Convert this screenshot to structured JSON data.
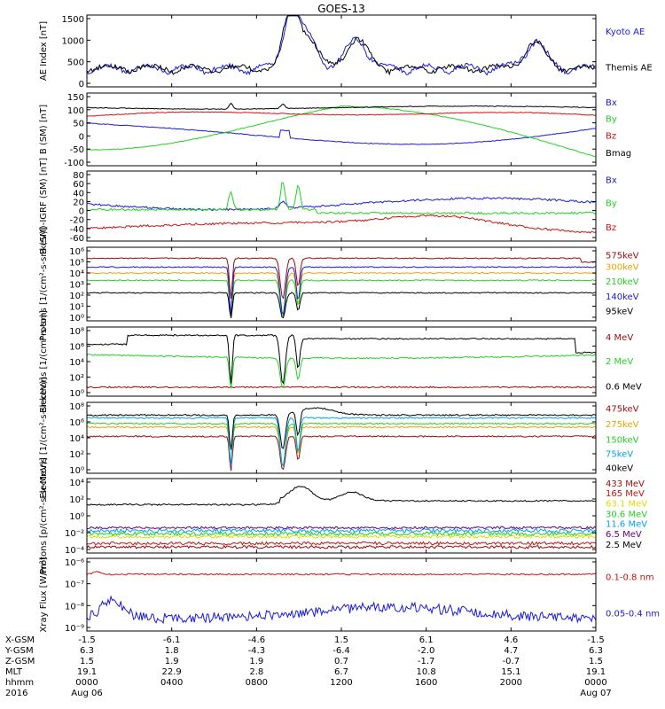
{
  "title": "GOES-13",
  "colors": {
    "black": "#000000",
    "blue": "#1a1adc",
    "green": "#22d022",
    "red": "#d01010",
    "darkred": "#9a0a0a",
    "orange": "#f0a000",
    "cyan": "#00a0f0",
    "yellow": "#dcdc00",
    "purple": "#6a0080"
  },
  "chart_data": [
    {
      "type": "line",
      "ylabel": "AE Index [nT]",
      "yticks": [
        "1500",
        "1000",
        "500",
        "0"
      ],
      "series": [
        {
          "name": "Kyoto AE",
          "color": "blue"
        },
        {
          "name": "Themis AE",
          "color": "black"
        }
      ]
    },
    {
      "type": "line",
      "ylabel": "B (SM) [nT]",
      "yticks": [
        "150",
        "100",
        "50",
        "0",
        "-50",
        "-100"
      ],
      "series": [
        {
          "name": "Bx",
          "color": "blue"
        },
        {
          "name": "By",
          "color": "green"
        },
        {
          "name": "Bz",
          "color": "red"
        },
        {
          "name": "Bmag",
          "color": "black"
        }
      ]
    },
    {
      "type": "line",
      "ylabel": "B (SM)-IGRF (SM) [nT]",
      "yticks": [
        "80",
        "60",
        "40",
        "20",
        "0",
        "-20",
        "-40",
        "-60"
      ],
      "series": [
        {
          "name": "Bx",
          "color": "blue"
        },
        {
          "name": "By",
          "color": "green"
        },
        {
          "name": "Bz",
          "color": "red"
        }
      ]
    },
    {
      "type": "line",
      "ylabel": "Protons [1/(cm²-s-sr-keV)]",
      "log": true,
      "yticks": [
        "10⁶",
        "10⁵",
        "10⁴",
        "10³",
        "10²",
        "10¹",
        "10⁰"
      ],
      "series": [
        {
          "name": "575keV",
          "color": "darkred"
        },
        {
          "name": "300keV",
          "color": "orange"
        },
        {
          "name": "210keV",
          "color": "green"
        },
        {
          "name": "140keV",
          "color": "blue"
        },
        {
          "name": "95keV",
          "color": "black"
        }
      ]
    },
    {
      "type": "line",
      "ylabel": "Electrons [1/(cm²-s-sr)]",
      "log": true,
      "yticks": [
        "10⁸",
        "10⁶",
        "10⁴",
        "10²",
        "10⁰"
      ],
      "series": [
        {
          "name": "4 MeV",
          "color": "darkred"
        },
        {
          "name": "2 MeV",
          "color": "green"
        },
        {
          "name": "0.6 MeV",
          "color": "black"
        }
      ]
    },
    {
      "type": "line",
      "ylabel": "Electrons [1/(cm²-s-sr-keV)]",
      "log": true,
      "yticks": [
        "10⁸",
        "10⁶",
        "10⁴",
        "10²",
        "10⁰"
      ],
      "series": [
        {
          "name": "475keV",
          "color": "darkred"
        },
        {
          "name": "275keV",
          "color": "orange"
        },
        {
          "name": "150keV",
          "color": "green"
        },
        {
          "name": "75keV",
          "color": "cyan"
        },
        {
          "name": "40keV",
          "color": "black"
        }
      ]
    },
    {
      "type": "line",
      "ylabel": "Protons [p/(cm²-s-sr-MeV)]",
      "log": true,
      "yticks": [
        "10⁴",
        "10²",
        "10⁰",
        "10⁻²",
        "10⁻⁴"
      ],
      "series": [
        {
          "name": "433 MeV",
          "color": "darkred"
        },
        {
          "name": "165 MeV",
          "color": "red"
        },
        {
          "name": "63.1 MeV",
          "color": "yellow"
        },
        {
          "name": "30.6 MeV",
          "color": "green"
        },
        {
          "name": "11.6 MeV",
          "color": "cyan"
        },
        {
          "name": "6.5 MeV",
          "color": "purple"
        },
        {
          "name": "2.5 MeV",
          "color": "black"
        }
      ]
    },
    {
      "type": "line",
      "ylabel": "Xray Flux [W/m²]",
      "log": true,
      "yticks": [
        "10⁻⁶",
        "10⁻⁷",
        "10⁻⁸",
        "10⁻⁹"
      ],
      "series": [
        {
          "name": "0.1-0.8 nm",
          "color": "red"
        },
        {
          "name": "0.05-0.4 nm",
          "color": "blue"
        }
      ]
    }
  ],
  "x_axis": {
    "row_labels": [
      "X-GSM",
      "Y-GSM",
      "Z-GSM",
      "MLT",
      "hhmm",
      "2016"
    ],
    "columns": [
      {
        "values": [
          "-1.5",
          "6.3",
          "1.5",
          "19.1",
          "0000",
          "Aug 06"
        ]
      },
      {
        "values": [
          "-6.1",
          "1.8",
          "1.9",
          "22.9",
          "0400",
          ""
        ]
      },
      {
        "values": [
          "-4.6",
          "-4.3",
          "1.9",
          "2.8",
          "0800",
          ""
        ]
      },
      {
        "values": [
          "1.5",
          "-6.4",
          "0.7",
          "6.7",
          "1200",
          ""
        ]
      },
      {
        "values": [
          "6.1",
          "-2.0",
          "-1.7",
          "10.8",
          "1600",
          ""
        ]
      },
      {
        "values": [
          "4.6",
          "4.7",
          "-0.7",
          "15.1",
          "2000",
          ""
        ]
      },
      {
        "values": [
          "-1.5",
          "6.3",
          "1.5",
          "19.1",
          "0000",
          "Aug 07"
        ]
      }
    ]
  }
}
